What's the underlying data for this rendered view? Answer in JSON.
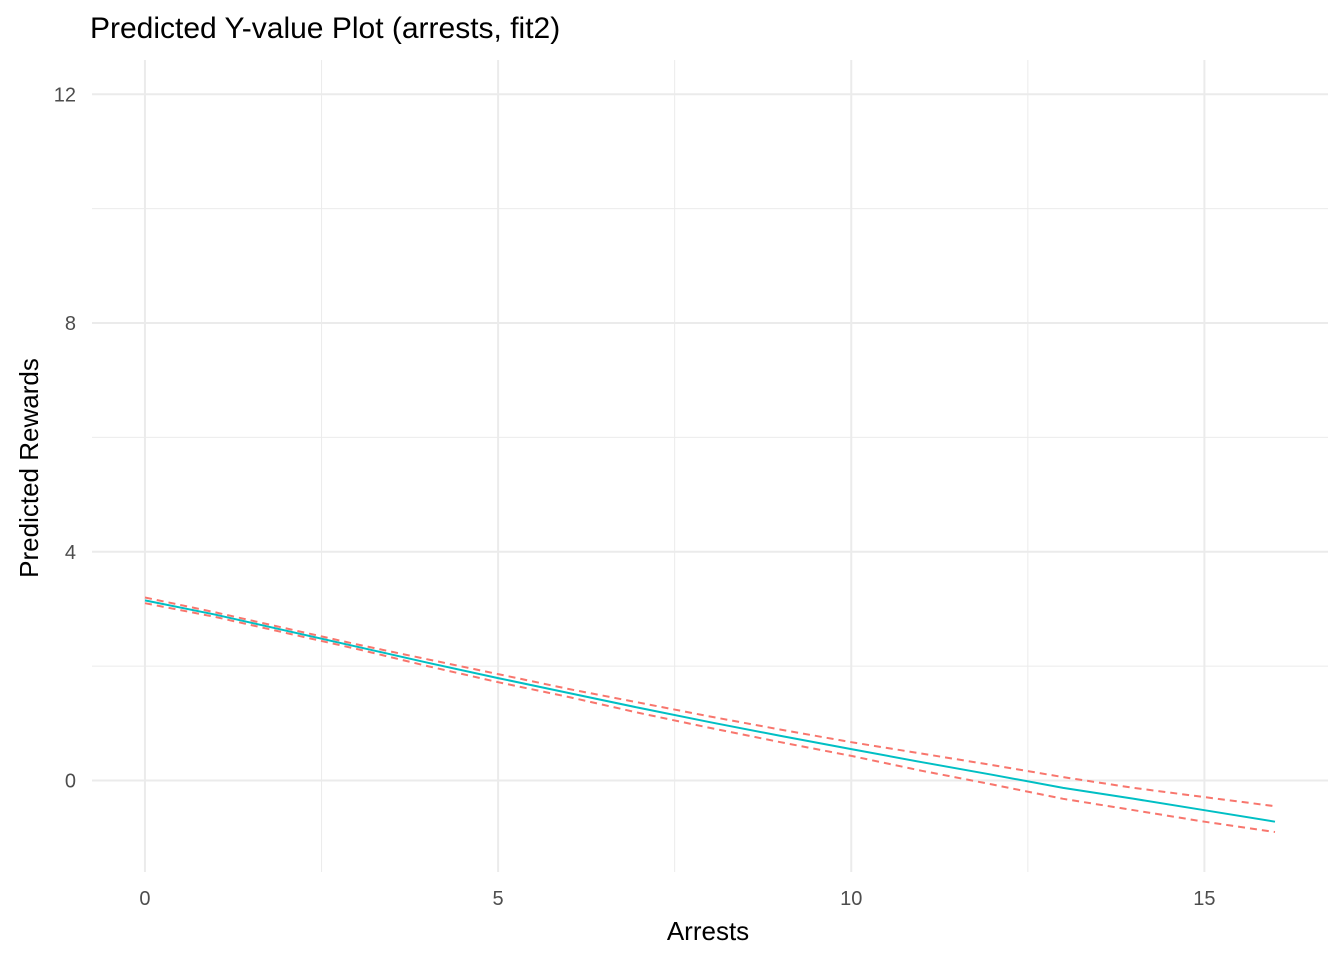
{
  "chart_data": {
    "type": "line",
    "title": "Predicted Y-value Plot (arrests, fit2)",
    "xlabel": "Arrests",
    "ylabel": "Predicted Rewards",
    "xlim": [
      -0.75,
      16.75
    ],
    "ylim": [
      -1.6,
      12.6
    ],
    "x_ticks": [
      0,
      5,
      10,
      15
    ],
    "y_ticks": [
      0,
      4,
      8,
      12
    ],
    "x_minor": [
      2.5,
      7.5,
      12.5
    ],
    "y_minor": [
      2,
      6,
      10
    ],
    "grid": true,
    "legend": "none",
    "colors": {
      "fit": "#00BFC4",
      "ci": "#F8766D",
      "grid": "#ebebeb",
      "tick_text": "#4d4d4d"
    },
    "series": [
      {
        "style": "solid",
        "x": [
          0,
          1,
          2,
          3,
          4,
          5,
          6,
          7,
          8,
          9,
          10,
          11,
          12,
          13,
          14,
          15,
          16
        ],
        "values": [
          3.15,
          2.9,
          2.62,
          2.34,
          2.06,
          1.79,
          1.53,
          1.27,
          1.02,
          0.78,
          0.55,
          0.32,
          0.1,
          -0.13,
          -0.32,
          -0.52,
          -0.72
        ]
      },
      {
        "style": "dashed",
        "x": [
          0,
          1,
          2,
          3,
          4,
          5,
          6,
          7,
          8,
          9,
          10,
          11,
          12,
          13,
          14,
          15,
          16
        ],
        "values": [
          3.2,
          2.94,
          2.66,
          2.38,
          2.12,
          1.86,
          1.6,
          1.36,
          1.12,
          0.89,
          0.67,
          0.47,
          0.27,
          0.06,
          -0.13,
          -0.29,
          -0.45
        ]
      },
      {
        "style": "dashed",
        "x": [
          0,
          1,
          2,
          3,
          4,
          5,
          6,
          7,
          8,
          9,
          10,
          11,
          12,
          13,
          14,
          15,
          16
        ],
        "values": [
          3.1,
          2.86,
          2.58,
          2.3,
          2.0,
          1.72,
          1.46,
          1.18,
          0.92,
          0.67,
          0.43,
          0.17,
          -0.07,
          -0.32,
          -0.52,
          -0.72,
          -0.9
        ]
      }
    ]
  }
}
